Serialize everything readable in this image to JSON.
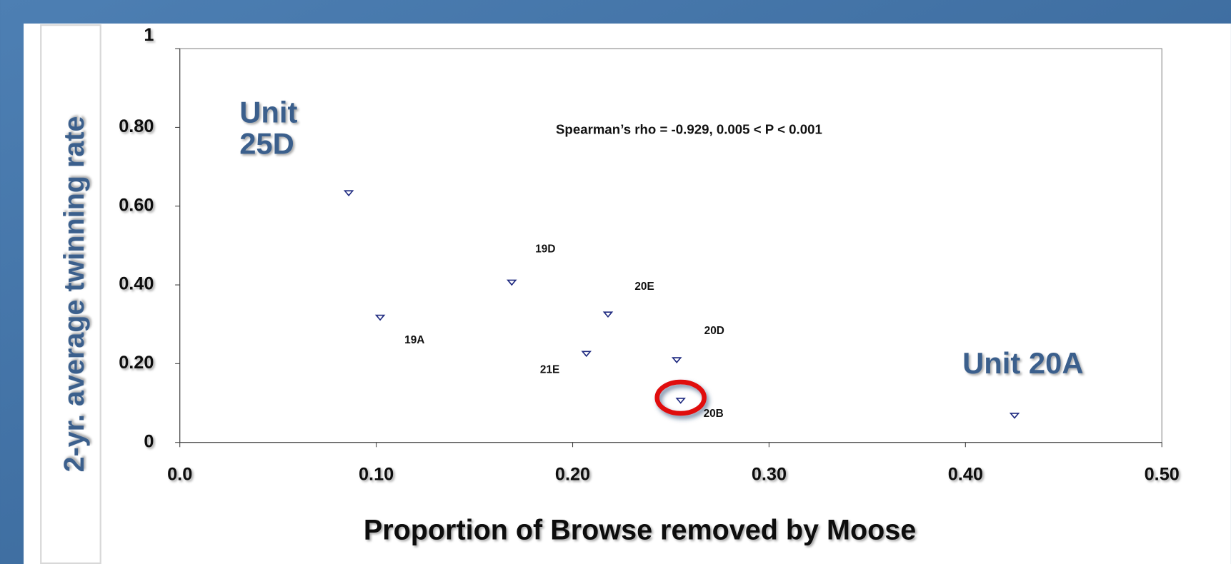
{
  "chart_data": {
    "type": "scatter",
    "x_label": "Proportion of Browse removed by Moose",
    "y_label": "2-yr. average twinning rate",
    "x": [
      0.086,
      0.102,
      0.169,
      0.218,
      0.207,
      0.253,
      0.255,
      0.425
    ],
    "values": [
      0.633,
      0.317,
      0.406,
      0.325,
      0.225,
      0.209,
      0.106,
      0.068
    ],
    "point_labels": [
      null,
      "19A",
      "19D",
      "20E",
      "21E",
      "20D",
      "20B",
      null
    ],
    "color": "#1f2a80",
    "xlim": [
      0,
      0.5
    ],
    "xticks": [
      {
        "value": 0,
        "label": "0.0"
      },
      {
        "value": 0.1,
        "label": "0.10"
      },
      {
        "value": 0.2,
        "label": "0.20"
      },
      {
        "value": 0.3,
        "label": "0.30"
      },
      {
        "value": 0.4,
        "label": "0.40"
      },
      {
        "value": 0.5,
        "label": "0.50"
      }
    ],
    "ylim": [
      0,
      1
    ],
    "yticks": [
      0,
      {
        "value": 0.2,
        "label": "0.20"
      },
      {
        "value": 0.4,
        "label": "0.40"
      },
      {
        "value": 0.6,
        "label": "0.60"
      },
      {
        "value": 0.8,
        "label": "0.80"
      },
      1
    ],
    "annotations": [
      {
        "lines": [
          "Unit",
          "25D"
        ]
      },
      {
        "lines": [
          "Unit 20A"
        ]
      },
      {
        "lines": [
          "Spearman’s rho = -0.929, 0.005 < P < 0.001"
        ]
      }
    ]
  }
}
